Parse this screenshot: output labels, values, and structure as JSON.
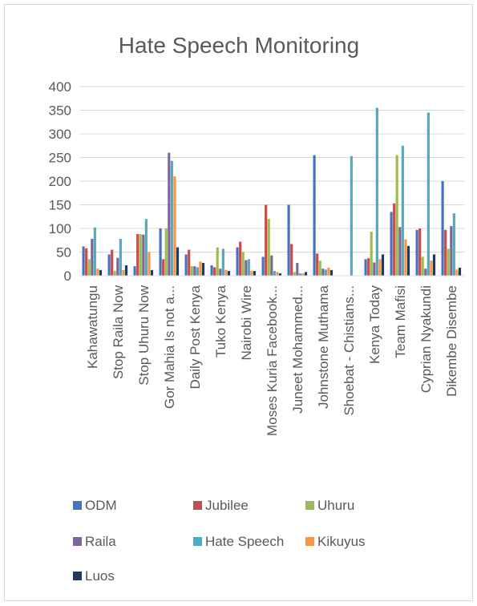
{
  "chart_data": {
    "type": "bar",
    "title": "Hate Speech Monitoring",
    "xlabel": "",
    "ylabel": "",
    "ylim": [
      0,
      400
    ],
    "yticks": [
      0,
      50,
      100,
      150,
      200,
      250,
      300,
      350,
      400
    ],
    "grid": true,
    "legend_position": "bottom",
    "categories": [
      "Kahawatungu",
      "Stop Raila Now",
      "Stop Uhuru Now",
      "Gor Mahia Is not a...",
      "Daily Post Kenya",
      "Tuko Kenya",
      "Nairobi Wire",
      "Moses Kuria Facebook...",
      "Juneet Mohammed...",
      "Johnstone Muthama",
      "Shoebat - Chistians...",
      "Kenya Today",
      "Team Mafisi",
      "Cyprian Nyakundi",
      "Dikembe Disembe"
    ],
    "series": [
      {
        "name": "ODM",
        "color": "#4472c4",
        "values": [
          62,
          45,
          20,
          100,
          45,
          22,
          60,
          40,
          150,
          255,
          0,
          35,
          135,
          97,
          200
        ]
      },
      {
        "name": "Jubilee",
        "color": "#c0504d",
        "values": [
          58,
          55,
          88,
          35,
          55,
          18,
          72,
          150,
          67,
          47,
          0,
          37,
          153,
          100,
          97
        ]
      },
      {
        "name": "Uhuru",
        "color": "#9bbb59",
        "values": [
          35,
          10,
          88,
          100,
          20,
          60,
          50,
          120,
          8,
          32,
          0,
          93,
          255,
          40,
          57
        ]
      },
      {
        "name": "Raila",
        "color": "#8064a2",
        "values": [
          78,
          38,
          87,
          260,
          20,
          15,
          33,
          43,
          27,
          15,
          0,
          28,
          103,
          15,
          105
        ]
      },
      {
        "name": "Hate Speech",
        "color": "#4bacc6",
        "values": [
          102,
          78,
          120,
          243,
          18,
          57,
          35,
          10,
          5,
          13,
          253,
          355,
          275,
          345,
          132
        ]
      },
      {
        "name": "Kikuyus",
        "color": "#f79646",
        "values": [
          15,
          12,
          50,
          210,
          30,
          12,
          10,
          8,
          5,
          17,
          0,
          35,
          77,
          32,
          13
        ]
      },
      {
        "name": "Luos",
        "color": "#1f3864",
        "values": [
          12,
          22,
          12,
          60,
          27,
          10,
          10,
          5,
          8,
          12,
          0,
          45,
          63,
          45,
          17
        ]
      }
    ]
  }
}
